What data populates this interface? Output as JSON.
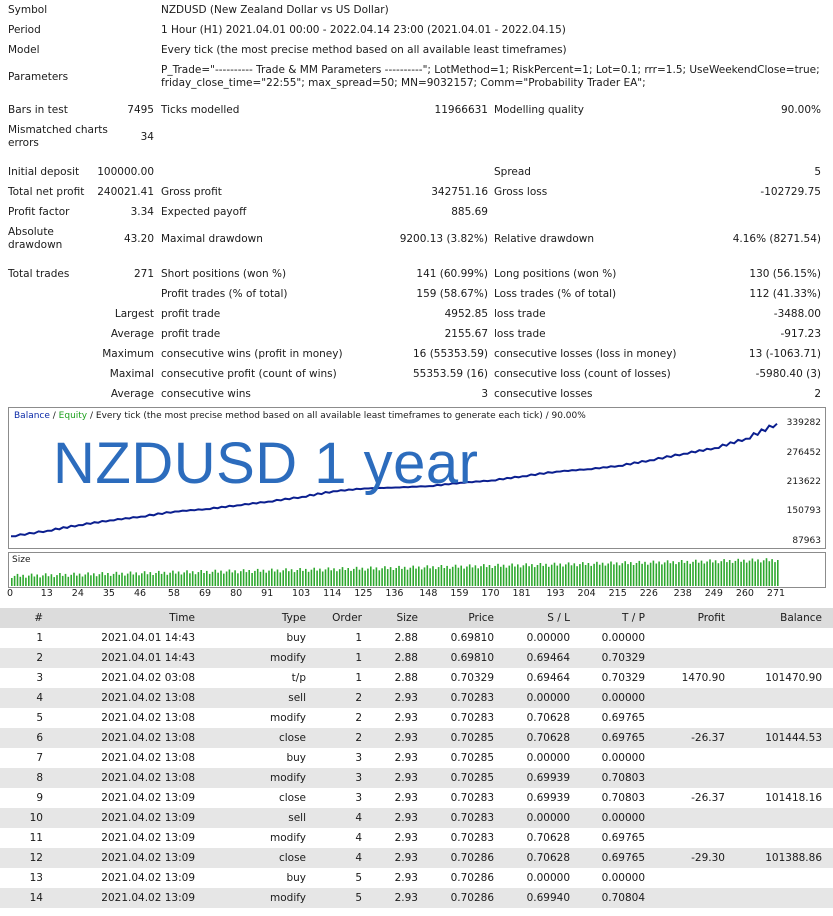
{
  "summary": {
    "symbol_label": "Symbol",
    "symbol_value": "NZDUSD (New Zealand Dollar vs US Dollar)",
    "period_label": "Period",
    "period_value": "1 Hour (H1) 2021.04.01 00:00 - 2022.04.14 23:00 (2021.04.01 - 2022.04.15)",
    "model_label": "Model",
    "model_value": "Every tick (the most precise method based on all available least timeframes)",
    "parameters_label": "Parameters",
    "parameters_line1": "P_Trade=\"---------- Trade & MM Parameters ----------\"; LotMethod=1; RiskPercent=1; Lot=0.1; rrr=1.5; UseWeekendClose=true;",
    "parameters_line2": "friday_close_time=\"22:55\"; max_spread=50; MN=9032157; Comm=\"Probability Trader EA\";",
    "bars_label": "Bars in test",
    "bars_value": "7495",
    "ticks_label": "Ticks modelled",
    "ticks_value": "11966631",
    "quality_label": "Modelling quality",
    "quality_value": "90.00%",
    "mismatch_label_1": "Mismatched charts",
    "mismatch_label_2": "errors",
    "mismatch_value": "34",
    "deposit_label": "Initial deposit",
    "deposit_value": "100000.00",
    "spread_label": "Spread",
    "spread_value": "5",
    "netprofit_label": "Total net profit",
    "netprofit_value": "240021.41",
    "grossprofit_label": "Gross profit",
    "grossprofit_value": "342751.16",
    "grossloss_label": "Gross loss",
    "grossloss_value": "-102729.75",
    "pf_label": "Profit factor",
    "pf_value": "3.34",
    "payoff_label": "Expected payoff",
    "payoff_value": "885.69",
    "absdd_label_1": "Absolute",
    "absdd_label_2": "drawdown",
    "absdd_value": "43.20",
    "maxdd_label": "Maximal drawdown",
    "maxdd_value": "9200.13 (3.82%)",
    "reldd_label": "Relative drawdown",
    "reldd_value": "4.16% (8271.54)",
    "trades_label": "Total trades",
    "trades_value": "271",
    "short_label": "Short positions (won %)",
    "short_value": "141 (60.99%)",
    "long_label": "Long positions (won %)",
    "long_value": "130 (56.15%)",
    "ptrades_label": "Profit trades (% of total)",
    "ptrades_value": "159 (58.67%)",
    "ltrades_label": "Loss trades (% of total)",
    "ltrades_value": "112 (41.33%)",
    "largest_label": "Largest",
    "largest_profit_label": "profit trade",
    "largest_profit_value": "4952.85",
    "largest_loss_label": "loss trade",
    "largest_loss_value": "-3488.00",
    "average_label": "Average",
    "average_profit_label": "profit trade",
    "average_profit_value": "2155.67",
    "average_loss_label": "loss trade",
    "average_loss_value": "-917.23",
    "maximum_label": "Maximum",
    "max_wins_label": "consecutive wins (profit in money)",
    "max_wins_value": "16 (55353.59)",
    "max_losses_label": "consecutive losses (loss in money)",
    "max_losses_value": "13 (-1063.71)",
    "maximal_label": "Maximal",
    "maximal_profit_label": "consecutive profit (count of wins)",
    "maximal_profit_value": "55353.59 (16)",
    "maximal_loss_label": "consecutive loss (count of losses)",
    "maximal_loss_value": "-5980.40 (3)",
    "average2_label": "Average",
    "avg_wins_label": "consecutive wins",
    "avg_wins_value": "3",
    "avg_losses_label": "consecutive losses",
    "avg_losses_value": "2"
  },
  "chart": {
    "legend_balance": "Balance",
    "legend_sep": " / ",
    "legend_equity": "Equity",
    "legend_rest": " / Every tick (the most precise method based on all available least timeframes to generate each tick) / 90.00%",
    "watermark": "NZDUSD 1 year",
    "size_label": "Size",
    "y_ticks": [
      "339282",
      "276452",
      "213622",
      "150793",
      "87963"
    ],
    "x_ticks": [
      "0",
      "13",
      "24",
      "35",
      "46",
      "58",
      "69",
      "80",
      "91",
      "103",
      "114",
      "125",
      "136",
      "148",
      "159",
      "170",
      "181",
      "193",
      "204",
      "215",
      "226",
      "238",
      "249",
      "260",
      "271"
    ],
    "colors": {
      "balance": "#0b1f8f",
      "equity": "#1ea01e",
      "size_bars": "#2ea82e"
    }
  },
  "chart_data": {
    "type": "line",
    "series": [
      {
        "name": "Balance",
        "x": [
          0,
          13,
          24,
          35,
          46,
          58,
          69,
          80,
          91,
          103,
          114,
          125,
          136,
          148,
          159,
          170,
          181,
          193,
          204,
          215,
          226,
          238,
          249,
          260,
          271
        ],
        "values": [
          100000,
          112000,
          124000,
          134000,
          142000,
          153000,
          158000,
          166000,
          174000,
          184000,
          196000,
          202000,
          204000,
          207000,
          214000,
          219000,
          228000,
          238000,
          243000,
          250000,
          262000,
          276000,
          288000,
          308000,
          340000
        ]
      }
    ],
    "ylim": [
      87963,
      339282
    ]
  },
  "table": {
    "headers": [
      "#",
      "Time",
      "Type",
      "Order",
      "Size",
      "Price",
      "S / L",
      "T / P",
      "Profit",
      "Balance"
    ],
    "rows": [
      [
        "1",
        "2021.04.01 14:43",
        "buy",
        "1",
        "2.88",
        "0.69810",
        "0.00000",
        "0.00000",
        "",
        ""
      ],
      [
        "2",
        "2021.04.01 14:43",
        "modify",
        "1",
        "2.88",
        "0.69810",
        "0.69464",
        "0.70329",
        "",
        ""
      ],
      [
        "3",
        "2021.04.02 03:08",
        "t/p",
        "1",
        "2.88",
        "0.70329",
        "0.69464",
        "0.70329",
        "1470.90",
        "101470.90"
      ],
      [
        "4",
        "2021.04.02 13:08",
        "sell",
        "2",
        "2.93",
        "0.70283",
        "0.00000",
        "0.00000",
        "",
        ""
      ],
      [
        "5",
        "2021.04.02 13:08",
        "modify",
        "2",
        "2.93",
        "0.70283",
        "0.70628",
        "0.69765",
        "",
        ""
      ],
      [
        "6",
        "2021.04.02 13:08",
        "close",
        "2",
        "2.93",
        "0.70285",
        "0.70628",
        "0.69765",
        "-26.37",
        "101444.53"
      ],
      [
        "7",
        "2021.04.02 13:08",
        "buy",
        "3",
        "2.93",
        "0.70285",
        "0.00000",
        "0.00000",
        "",
        ""
      ],
      [
        "8",
        "2021.04.02 13:08",
        "modify",
        "3",
        "2.93",
        "0.70285",
        "0.69939",
        "0.70803",
        "",
        ""
      ],
      [
        "9",
        "2021.04.02 13:09",
        "close",
        "3",
        "2.93",
        "0.70283",
        "0.69939",
        "0.70803",
        "-26.37",
        "101418.16"
      ],
      [
        "10",
        "2021.04.02 13:09",
        "sell",
        "4",
        "2.93",
        "0.70283",
        "0.00000",
        "0.00000",
        "",
        ""
      ],
      [
        "11",
        "2021.04.02 13:09",
        "modify",
        "4",
        "2.93",
        "0.70283",
        "0.70628",
        "0.69765",
        "",
        ""
      ],
      [
        "12",
        "2021.04.02 13:09",
        "close",
        "4",
        "2.93",
        "0.70286",
        "0.70628",
        "0.69765",
        "-29.30",
        "101388.86"
      ],
      [
        "13",
        "2021.04.02 13:09",
        "buy",
        "5",
        "2.93",
        "0.70286",
        "0.00000",
        "0.00000",
        "",
        ""
      ],
      [
        "14",
        "2021.04.02 13:09",
        "modify",
        "5",
        "2.93",
        "0.70286",
        "0.69940",
        "0.70804",
        "",
        ""
      ]
    ]
  }
}
